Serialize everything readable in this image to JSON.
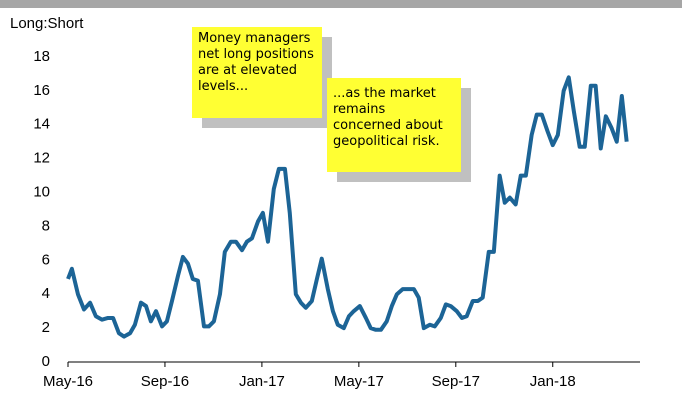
{
  "chart_data": {
    "type": "line",
    "ylabel": "Long:Short",
    "annotations": [
      "Money managers net long positions are at elevated levels...",
      "...as the market remains concerned about geopolitical risk."
    ],
    "x": [
      0,
      0.16,
      0.41,
      0.66,
      0.91,
      1.15,
      1.4,
      1.65,
      1.86,
      2.1,
      2.31,
      2.56,
      2.76,
      3.01,
      3.22,
      3.42,
      3.63,
      3.88,
      4.08,
      4.29,
      4.54,
      4.74,
      4.95,
      5.15,
      5.36,
      5.61,
      5.81,
      6.02,
      6.27,
      6.47,
      6.72,
      6.93,
      7.18,
      7.38,
      7.59,
      7.84,
      8.04,
      8.25,
      8.49,
      8.7,
      8.95,
      9.15,
      9.4,
      9.61,
      9.81,
      10.06,
      10.27,
      10.47,
      10.72,
      10.93,
      11.13,
      11.38,
      11.59,
      11.79,
      12.04,
      12.29,
      12.49,
      12.7,
      12.91,
      13.15,
      13.36,
      13.57,
      13.81,
      14.02,
      14.27,
      14.47,
      14.68,
      14.93,
      15.13,
      15.38,
      15.59,
      15.79,
      16.04,
      16.25,
      16.45,
      16.7,
      16.91,
      17.11,
      17.36,
      17.57,
      17.81,
      18.02,
      18.23,
      18.47,
      18.68,
      18.89,
      19.13,
      19.34,
      19.55,
      19.79,
      20,
      20.21,
      20.45,
      20.66,
      20.87,
      21.11,
      21.32,
      21.57,
      21.77,
      21.98,
      22.19,
      22.43,
      22.64,
      22.85,
      23.05
    ],
    "series": [
      {
        "name": "Long:Short",
        "color": "#1c6496",
        "values": [
          4.9,
          5.5,
          4.0,
          3.1,
          3.5,
          2.7,
          2.5,
          2.6,
          2.6,
          1.7,
          1.5,
          1.7,
          2.2,
          3.5,
          3.3,
          2.4,
          3.0,
          2.1,
          2.4,
          3.6,
          5.1,
          6.2,
          5.8,
          4.9,
          4.8,
          2.1,
          2.1,
          2.4,
          4.0,
          6.5,
          7.1,
          7.1,
          6.6,
          7.1,
          7.3,
          8.3,
          8.8,
          7.1,
          10.2,
          11.4,
          11.4,
          8.8,
          4.0,
          3.5,
          3.2,
          3.6,
          4.9,
          6.1,
          4.3,
          3.0,
          2.2,
          2.0,
          2.7,
          3.0,
          3.3,
          2.6,
          2.0,
          1.9,
          1.9,
          2.4,
          3.3,
          4.0,
          4.3,
          4.3,
          4.3,
          3.8,
          2.0,
          2.2,
          2.1,
          2.6,
          3.4,
          3.3,
          3.0,
          2.6,
          2.7,
          3.6,
          3.6,
          3.8,
          6.5,
          6.5,
          11.0,
          9.4,
          9.7,
          9.3,
          11.0,
          11.0,
          13.4,
          14.6,
          14.6,
          13.6,
          12.8,
          13.4,
          16.0,
          16.8,
          14.8,
          12.7,
          12.7,
          16.3,
          16.3,
          12.6,
          14.5,
          13.8,
          13.0,
          15.7,
          13.0
        ]
      }
    ],
    "xlim": [
      0,
      23.6
    ],
    "xticks": [
      {
        "value": 0,
        "label": "May-16"
      },
      {
        "value": 4,
        "label": "Sep-16"
      },
      {
        "value": 8,
        "label": "Jan-17"
      },
      {
        "value": 12,
        "label": "May-17"
      },
      {
        "value": 16,
        "label": "Sep-17"
      },
      {
        "value": 20,
        "label": "Jan-18"
      }
    ],
    "ylim": [
      0,
      18
    ],
    "yticks": [
      0,
      2,
      4,
      6,
      8,
      10,
      12,
      14,
      16,
      18
    ],
    "grid": false
  }
}
